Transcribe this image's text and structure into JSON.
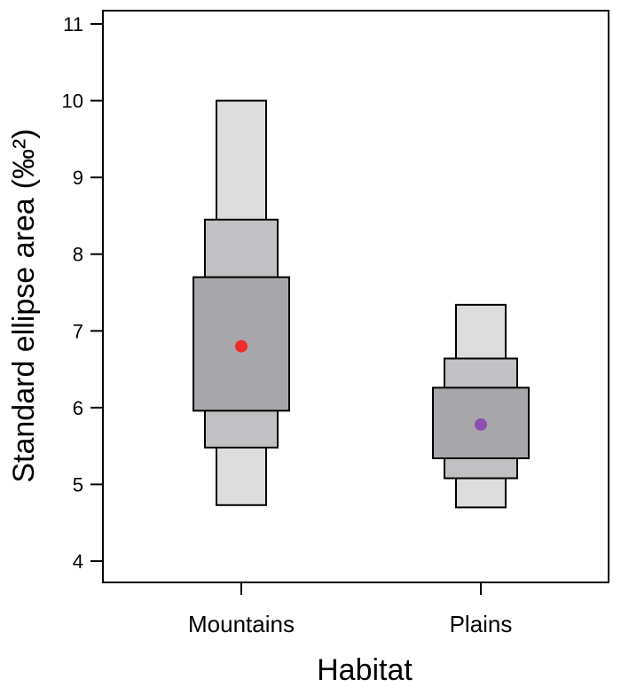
{
  "chart_data": {
    "type": "box",
    "xlabel": "Habitat",
    "ylabel": "Standard ellipse area",
    "yunit": "(‰²)",
    "ylim": [
      4,
      11
    ],
    "yticks": [
      "4",
      "5",
      "6",
      "7",
      "8",
      "9",
      "10",
      "11"
    ],
    "categories": [
      "Mountains",
      "Plains"
    ],
    "credible_intervals": [
      {
        "category": "Mountains",
        "mode": 6.8,
        "ci_95": [
          4.73,
          10.0
        ],
        "ci_75": [
          5.48,
          8.45
        ],
        "ci_50": [
          5.96,
          7.7
        ]
      },
      {
        "category": "Plains",
        "mode": 5.78,
        "ci_95": [
          4.7,
          7.34
        ],
        "ci_75": [
          5.08,
          6.64
        ],
        "ci_50": [
          5.34,
          6.26
        ]
      }
    ],
    "colors": {
      "ci_95": "#dcdcdc",
      "ci_75": "#c1c1c3",
      "ci_50": "#a7a7ab",
      "mode_mountains": "#ee2a2a",
      "mode_plains": "#8b4fb0"
    }
  }
}
